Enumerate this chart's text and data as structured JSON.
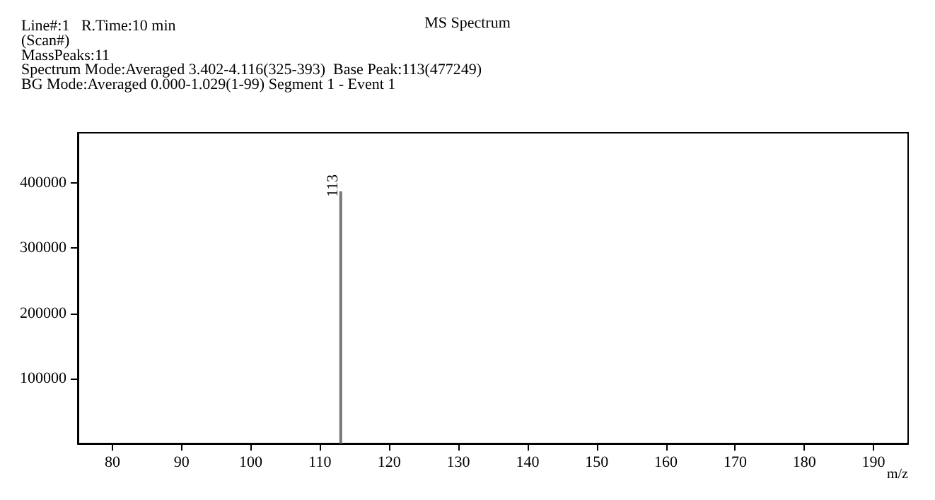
{
  "chart_data": {
    "type": "bar",
    "title": "MS Spectrum",
    "annotations": [
      "Line#:1   R.Time:10 min",
      "(Scan#)",
      "MassPeaks:11",
      "Spectrum Mode:Averaged 3.402-4.116(325-393)  Base Peak:113(477249)",
      "BG Mode:Averaged 0.000-1.029(1-99) Segment 1 - Event 1",
      {
        "text": "113",
        "x": 113,
        "y": 387000
      }
    ],
    "xlabel": "m/z",
    "x": [
      113
    ],
    "values": [
      387000
    ],
    "color": "#777777",
    "xlim": [
      75,
      195
    ],
    "xticks": [
      80,
      90,
      100,
      110,
      120,
      130,
      140,
      150,
      160,
      170,
      180,
      190
    ],
    "ylim": [
      0,
      477000
    ],
    "yticks": [
      100000,
      200000,
      300000,
      400000
    ],
    "grid": false
  }
}
